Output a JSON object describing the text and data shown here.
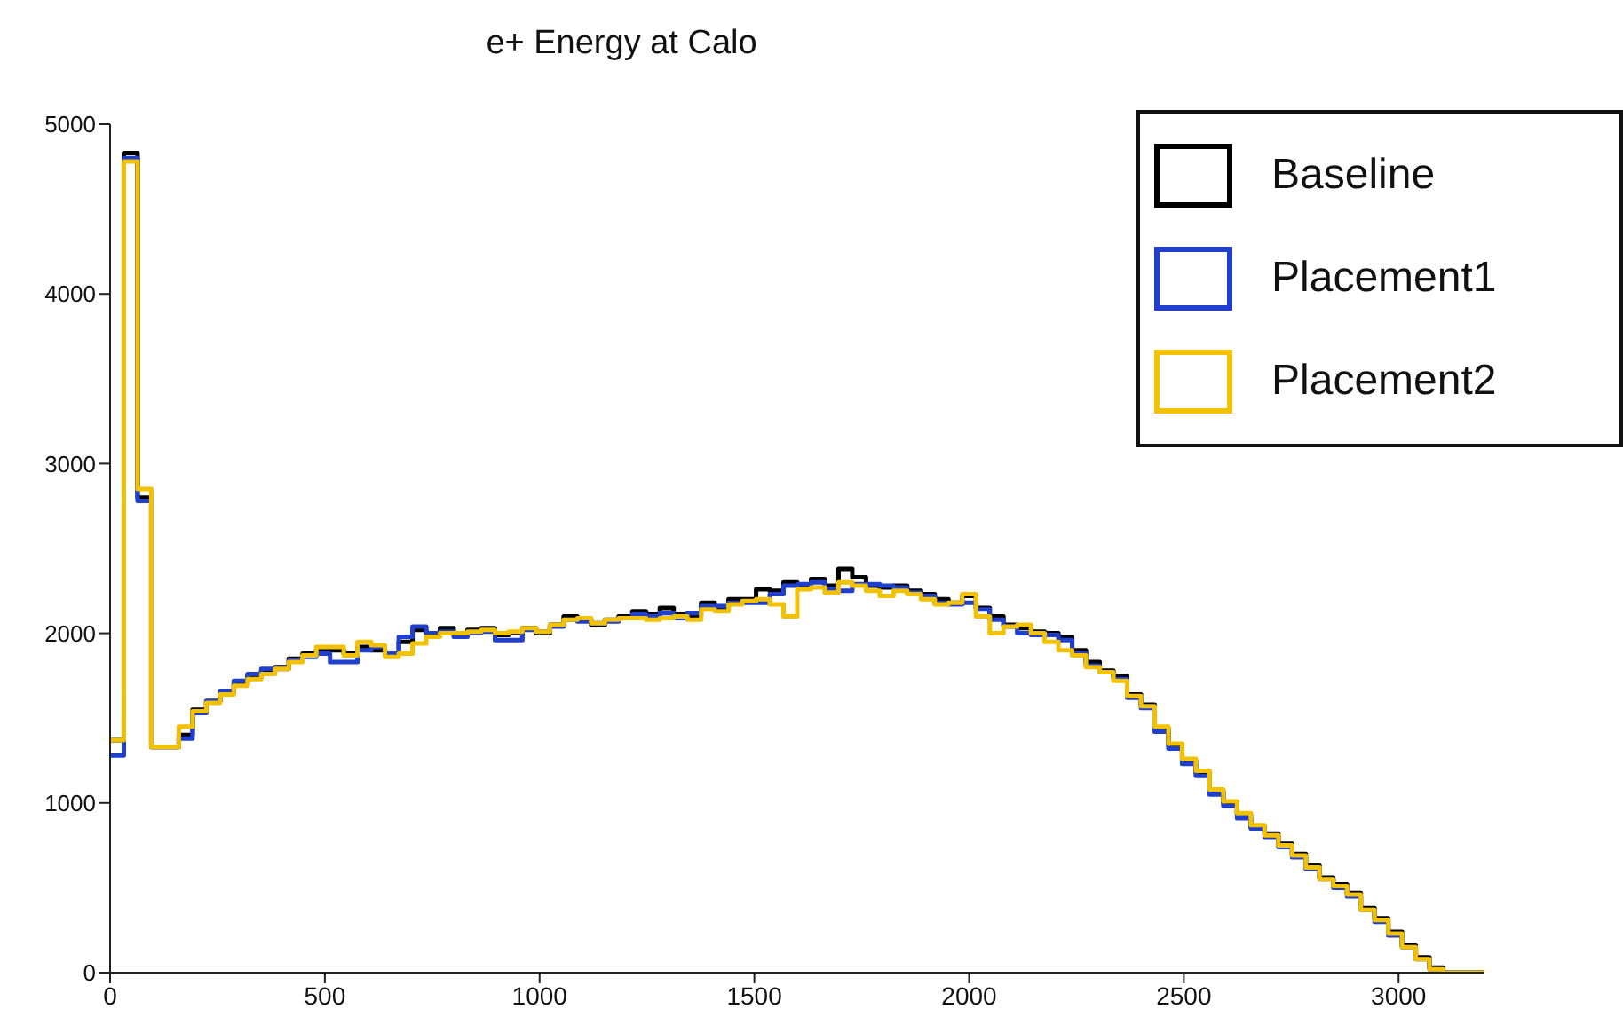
{
  "chart_data": {
    "type": "histogram",
    "title": "e+ Energy at Calo",
    "bins": [
      0,
      32,
      64,
      96,
      128,
      160,
      192,
      224,
      256,
      288,
      320,
      352,
      384,
      416,
      448,
      480,
      512,
      544,
      576,
      608,
      640,
      672,
      704,
      736,
      768,
      800,
      832,
      864,
      896,
      928,
      960,
      992,
      1024,
      1056,
      1088,
      1120,
      1152,
      1184,
      1216,
      1248,
      1280,
      1312,
      1344,
      1376,
      1408,
      1440,
      1472,
      1504,
      1536,
      1568,
      1600,
      1632,
      1664,
      1696,
      1728,
      1760,
      1792,
      1824,
      1856,
      1888,
      1920,
      1952,
      1984,
      2016,
      2048,
      2080,
      2112,
      2144,
      2176,
      2208,
      2240,
      2272,
      2304,
      2336,
      2368,
      2400,
      2432,
      2464,
      2496,
      2528,
      2560,
      2592,
      2624,
      2656,
      2688,
      2720,
      2752,
      2784,
      2816,
      2848,
      2880,
      2912,
      2944,
      2976,
      3008,
      3040,
      3072,
      3104,
      3136,
      3168,
      3200
    ],
    "series": [
      {
        "name": "Baseline",
        "color": "#000000",
        "values": [
          1370,
          4830,
          2800,
          1330,
          1330,
          1400,
          1550,
          1600,
          1650,
          1700,
          1750,
          1780,
          1800,
          1850,
          1880,
          1900,
          1900,
          1880,
          1920,
          1900,
          1880,
          1950,
          2020,
          2000,
          2030,
          2000,
          2020,
          2030,
          1990,
          2000,
          2030,
          2000,
          2050,
          2100,
          2080,
          2050,
          2080,
          2100,
          2130,
          2110,
          2150,
          2110,
          2100,
          2180,
          2150,
          2200,
          2200,
          2260,
          2250,
          2300,
          2280,
          2320,
          2280,
          2380,
          2330,
          2280,
          2270,
          2280,
          2250,
          2230,
          2200,
          2180,
          2220,
          2150,
          2100,
          2050,
          2030,
          2010,
          2000,
          1980,
          1900,
          1830,
          1780,
          1750,
          1640,
          1580,
          1440,
          1340,
          1250,
          1180,
          1070,
          1000,
          930,
          860,
          820,
          760,
          700,
          630,
          560,
          520,
          470,
          380,
          320,
          240,
          160,
          90,
          30,
          0,
          0,
          0
        ]
      },
      {
        "name": "Placement1",
        "color": "#1f3fcc",
        "values": [
          1280,
          4800,
          2780,
          1330,
          1330,
          1380,
          1530,
          1600,
          1660,
          1720,
          1760,
          1790,
          1790,
          1840,
          1860,
          1880,
          1830,
          1830,
          1900,
          1920,
          1880,
          1980,
          2040,
          2000,
          2010,
          1980,
          2000,
          2010,
          1960,
          1960,
          2020,
          2010,
          2040,
          2080,
          2070,
          2060,
          2070,
          2090,
          2110,
          2100,
          2120,
          2090,
          2120,
          2160,
          2160,
          2180,
          2180,
          2180,
          2230,
          2280,
          2290,
          2300,
          2260,
          2250,
          2290,
          2290,
          2280,
          2270,
          2240,
          2220,
          2180,
          2170,
          2180,
          2140,
          2080,
          2040,
          2000,
          1990,
          1990,
          1960,
          1880,
          1810,
          1770,
          1730,
          1620,
          1560,
          1420,
          1320,
          1230,
          1160,
          1050,
          980,
          910,
          850,
          800,
          740,
          680,
          610,
          550,
          500,
          450,
          370,
          300,
          220,
          150,
          80,
          20,
          0,
          0,
          0
        ]
      },
      {
        "name": "Placement2",
        "color": "#f2c200",
        "values": [
          1370,
          4780,
          2850,
          1330,
          1330,
          1450,
          1540,
          1590,
          1640,
          1690,
          1730,
          1760,
          1790,
          1830,
          1870,
          1920,
          1920,
          1870,
          1950,
          1930,
          1860,
          1880,
          1940,
          1980,
          2000,
          2000,
          2010,
          2020,
          2000,
          2010,
          2030,
          2010,
          2050,
          2080,
          2090,
          2060,
          2080,
          2090,
          2090,
          2080,
          2090,
          2100,
          2080,
          2140,
          2130,
          2170,
          2190,
          2200,
          2170,
          2100,
          2260,
          2270,
          2240,
          2300,
          2280,
          2250,
          2220,
          2250,
          2230,
          2200,
          2170,
          2180,
          2230,
          2100,
          2000,
          2040,
          2050,
          2000,
          1950,
          1900,
          1870,
          1800,
          1770,
          1720,
          1630,
          1570,
          1450,
          1350,
          1260,
          1190,
          1080,
          1010,
          940,
          870,
          810,
          750,
          690,
          620,
          550,
          510,
          460,
          370,
          310,
          230,
          150,
          80,
          20,
          0,
          0,
          0
        ]
      }
    ],
    "xlim": [
      0,
      3200
    ],
    "xticks": [
      0,
      500,
      1000,
      1500,
      2000,
      2500,
      3000
    ],
    "ylim": [
      0,
      5000
    ],
    "yticks": [
      0,
      1000,
      2000,
      3000,
      4000,
      5000
    ],
    "grid": false,
    "legend": "top right"
  }
}
